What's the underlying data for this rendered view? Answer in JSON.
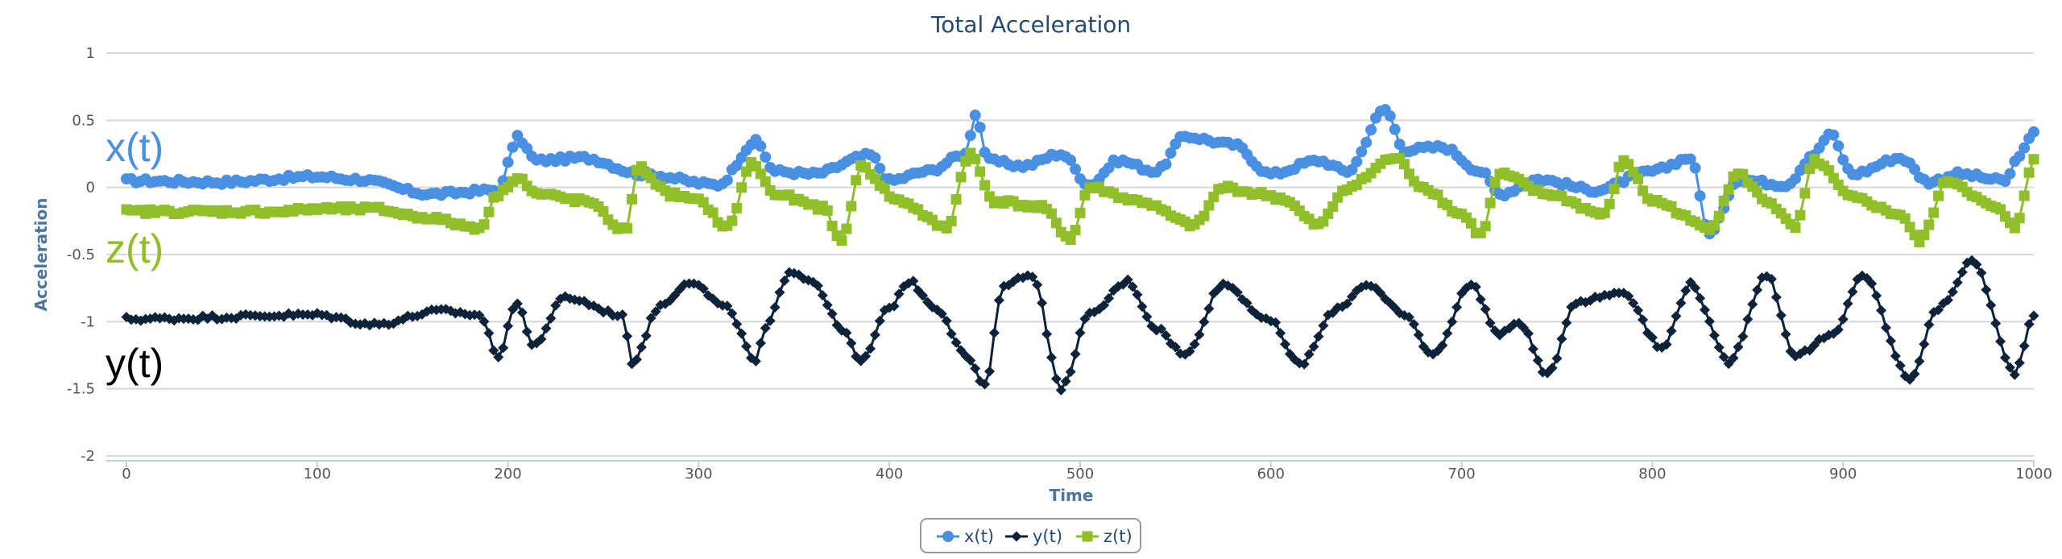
{
  "chart_data": {
    "type": "line",
    "title": "Total Acceleration",
    "xlabel": "Time",
    "ylabel": "Acceleration",
    "xlim": [
      0,
      1000
    ],
    "ylim": [
      -2,
      1
    ],
    "xticks": [
      "0",
      "100",
      "200",
      "300",
      "400",
      "500",
      "600",
      "700",
      "800",
      "900",
      "1000"
    ],
    "yticks": [
      "1",
      "0.5",
      "0",
      "-0.5",
      "-1",
      "-1.5",
      "-2"
    ],
    "grid": true,
    "legend_position": "bottom-center",
    "series": [
      {
        "name": "x(t)",
        "color": "#4a90e2",
        "marker": "circle",
        "keypoints": [
          [
            0,
            0.05
          ],
          [
            50,
            0.04
          ],
          [
            100,
            0.08
          ],
          [
            120,
            0.06
          ],
          [
            160,
            -0.05
          ],
          [
            195,
            -0.02
          ],
          [
            205,
            0.37
          ],
          [
            215,
            0.2
          ],
          [
            240,
            0.22
          ],
          [
            270,
            0.1
          ],
          [
            310,
            0.02
          ],
          [
            330,
            0.34
          ],
          [
            340,
            0.12
          ],
          [
            360,
            0.1
          ],
          [
            390,
            0.24
          ],
          [
            400,
            0.05
          ],
          [
            420,
            0.12
          ],
          [
            440,
            0.25
          ],
          [
            445,
            0.55
          ],
          [
            452,
            0.2
          ],
          [
            470,
            0.16
          ],
          [
            490,
            0.25
          ],
          [
            505,
            0.02
          ],
          [
            520,
            0.2
          ],
          [
            540,
            0.12
          ],
          [
            555,
            0.38
          ],
          [
            580,
            0.32
          ],
          [
            600,
            0.1
          ],
          [
            625,
            0.2
          ],
          [
            640,
            0.12
          ],
          [
            660,
            0.58
          ],
          [
            670,
            0.28
          ],
          [
            690,
            0.3
          ],
          [
            710,
            0.12
          ],
          [
            720,
            -0.05
          ],
          [
            740,
            0.06
          ],
          [
            770,
            -0.02
          ],
          [
            800,
            0.12
          ],
          [
            820,
            0.22
          ],
          [
            830,
            -0.35
          ],
          [
            845,
            0.06
          ],
          [
            870,
            0.02
          ],
          [
            885,
            0.25
          ],
          [
            893,
            0.4
          ],
          [
            905,
            0.1
          ],
          [
            930,
            0.22
          ],
          [
            945,
            0.04
          ],
          [
            960,
            0.1
          ],
          [
            985,
            0.05
          ],
          [
            993,
            0.25
          ],
          [
            1000,
            0.4
          ]
        ]
      },
      {
        "name": "y(t)",
        "color": "#0d233a",
        "marker": "diamond",
        "keypoints": [
          [
            0,
            -0.98
          ],
          [
            100,
            -0.95
          ],
          [
            130,
            -1.02
          ],
          [
            165,
            -0.92
          ],
          [
            185,
            -0.95
          ],
          [
            195,
            -1.25
          ],
          [
            205,
            -0.85
          ],
          [
            213,
            -1.18
          ],
          [
            230,
            -0.82
          ],
          [
            260,
            -0.95
          ],
          [
            265,
            -1.3
          ],
          [
            280,
            -0.88
          ],
          [
            295,
            -0.7
          ],
          [
            315,
            -0.9
          ],
          [
            330,
            -1.3
          ],
          [
            335,
            -1.05
          ],
          [
            348,
            -0.62
          ],
          [
            360,
            -0.7
          ],
          [
            375,
            -1.05
          ],
          [
            385,
            -1.3
          ],
          [
            400,
            -0.9
          ],
          [
            410,
            -0.7
          ],
          [
            425,
            -0.9
          ],
          [
            440,
            -1.25
          ],
          [
            450,
            -1.48
          ],
          [
            460,
            -0.72
          ],
          [
            475,
            -0.65
          ],
          [
            490,
            -1.5
          ],
          [
            505,
            -0.95
          ],
          [
            525,
            -0.7
          ],
          [
            540,
            -1.05
          ],
          [
            555,
            -1.25
          ],
          [
            575,
            -0.72
          ],
          [
            600,
            -1.0
          ],
          [
            615,
            -1.32
          ],
          [
            635,
            -0.9
          ],
          [
            650,
            -0.72
          ],
          [
            670,
            -0.95
          ],
          [
            685,
            -1.25
          ],
          [
            705,
            -0.72
          ],
          [
            720,
            -1.1
          ],
          [
            730,
            -1.0
          ],
          [
            745,
            -1.4
          ],
          [
            760,
            -0.85
          ],
          [
            785,
            -0.78
          ],
          [
            805,
            -1.2
          ],
          [
            820,
            -0.72
          ],
          [
            840,
            -1.3
          ],
          [
            860,
            -0.65
          ],
          [
            875,
            -1.25
          ],
          [
            895,
            -1.1
          ],
          [
            910,
            -0.65
          ],
          [
            935,
            -1.42
          ],
          [
            950,
            -0.9
          ],
          [
            968,
            -0.55
          ],
          [
            990,
            -1.38
          ],
          [
            1000,
            -0.95
          ]
        ]
      },
      {
        "name": "z(t)",
        "color": "#90bf2a",
        "marker": "square",
        "keypoints": [
          [
            0,
            -0.18
          ],
          [
            50,
            -0.18
          ],
          [
            80,
            -0.18
          ],
          [
            100,
            -0.16
          ],
          [
            130,
            -0.16
          ],
          [
            155,
            -0.22
          ],
          [
            185,
            -0.3
          ],
          [
            195,
            -0.05
          ],
          [
            205,
            0.08
          ],
          [
            215,
            -0.05
          ],
          [
            240,
            -0.1
          ],
          [
            262,
            -0.32
          ],
          [
            268,
            0.15
          ],
          [
            285,
            -0.05
          ],
          [
            300,
            -0.1
          ],
          [
            315,
            -0.3
          ],
          [
            328,
            0.18
          ],
          [
            340,
            -0.05
          ],
          [
            365,
            -0.15
          ],
          [
            375,
            -0.4
          ],
          [
            385,
            0.15
          ],
          [
            405,
            -0.1
          ],
          [
            430,
            -0.3
          ],
          [
            442,
            0.25
          ],
          [
            455,
            -0.1
          ],
          [
            480,
            -0.15
          ],
          [
            495,
            -0.38
          ],
          [
            505,
            0.0
          ],
          [
            530,
            -0.1
          ],
          [
            560,
            -0.28
          ],
          [
            575,
            0.0
          ],
          [
            595,
            -0.05
          ],
          [
            605,
            -0.08
          ],
          [
            625,
            -0.28
          ],
          [
            640,
            0.0
          ],
          [
            665,
            0.22
          ],
          [
            680,
            0.0
          ],
          [
            700,
            -0.2
          ],
          [
            710,
            -0.35
          ],
          [
            720,
            0.1
          ],
          [
            745,
            -0.05
          ],
          [
            775,
            -0.2
          ],
          [
            785,
            0.2
          ],
          [
            800,
            -0.1
          ],
          [
            830,
            -0.3
          ],
          [
            845,
            0.1
          ],
          [
            860,
            -0.1
          ],
          [
            875,
            -0.3
          ],
          [
            885,
            0.2
          ],
          [
            905,
            -0.08
          ],
          [
            930,
            -0.2
          ],
          [
            940,
            -0.4
          ],
          [
            955,
            0.05
          ],
          [
            980,
            -0.15
          ],
          [
            990,
            -0.3
          ],
          [
            1000,
            0.2
          ]
        ]
      }
    ],
    "annotations": [
      {
        "text": "x(t)",
        "color": "#4a90e2"
      },
      {
        "text": "z(t)",
        "color": "#90bf2a"
      },
      {
        "text": "y(t)",
        "color": "#000000"
      }
    ]
  }
}
